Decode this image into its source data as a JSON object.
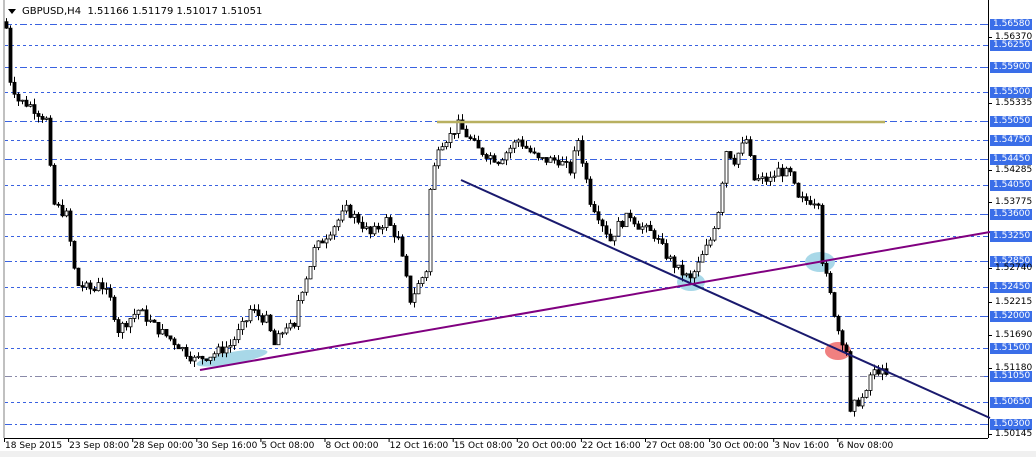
{
  "header": {
    "symbol": "GBPUSD,H4",
    "ohlc": "1.51166 1.51179 1.51017 1.51051"
  },
  "chart_data": {
    "type": "candlestick",
    "title": "GBPUSD,H4 1.51166 1.51179 1.51017 1.51051",
    "ylim": [
      1.4995,
      1.568
    ],
    "y_ticks": [
      "1.56370",
      "1.55335",
      "1.54285",
      "1.53775",
      "1.52740",
      "1.52215",
      "1.51690",
      "1.51180",
      "1.50145"
    ],
    "x_ticks": [
      "18 Sep 2015",
      "23 Sep 08:00",
      "28 Sep 00:00",
      "30 Sep 16:00",
      "5 Oct 08:00",
      "8 Oct 00:00",
      "12 Oct 16:00",
      "15 Oct 08:00",
      "20 Oct 00:00",
      "22 Oct 16:00",
      "27 Oct 08:00",
      "30 Oct 00:00",
      "3 Nov 16:00",
      "6 Nov 08:00"
    ],
    "level_lines": [
      "1.56580",
      "1.56250",
      "1.55900",
      "1.55500",
      "1.55050",
      "1.54750",
      "1.54450",
      "1.54050",
      "1.53600",
      "1.53250",
      "1.52850",
      "1.52450",
      "1.52000",
      "1.51500",
      "1.51050",
      "1.50650",
      "1.50300"
    ],
    "current_price": "1.51050",
    "close_path_by_bar": [
      [
        0,
        1.5651
      ],
      [
        1,
        1.557
      ],
      [
        3,
        1.5538
      ],
      [
        6,
        1.553
      ],
      [
        10,
        1.5507
      ],
      [
        11,
        1.5428
      ],
      [
        12,
        1.5374
      ],
      [
        15,
        1.5358
      ],
      [
        17,
        1.5272
      ],
      [
        18,
        1.5248
      ],
      [
        22,
        1.524
      ],
      [
        23,
        1.5256
      ],
      [
        26,
        1.5225
      ],
      [
        28,
        1.5178
      ],
      [
        33,
        1.5209
      ],
      [
        38,
        1.5178
      ],
      [
        43,
        1.5154
      ],
      [
        47,
        1.5131
      ],
      [
        51,
        1.5138
      ],
      [
        56,
        1.5154
      ],
      [
        60,
        1.5193
      ],
      [
        61,
        1.5209
      ],
      [
        65,
        1.5193
      ],
      [
        67,
        1.5154
      ],
      [
        70,
        1.5185
      ],
      [
        72,
        1.5178
      ],
      [
        73,
        1.5225
      ],
      [
        76,
        1.528
      ],
      [
        77,
        1.5303
      ],
      [
        81,
        1.5334
      ],
      [
        85,
        1.5366
      ],
      [
        88,
        1.535
      ],
      [
        91,
        1.5327
      ],
      [
        95,
        1.535
      ],
      [
        98,
        1.5319
      ],
      [
        100,
        1.5256
      ],
      [
        101,
        1.5225
      ],
      [
        105,
        1.5272
      ],
      [
        106,
        1.5397
      ],
      [
        108,
        1.5468
      ],
      [
        111,
        1.5483
      ],
      [
        113,
        1.5499
      ],
      [
        118,
        1.546
      ],
      [
        123,
        1.5444
      ],
      [
        128,
        1.5476
      ],
      [
        133,
        1.5444
      ],
      [
        138,
        1.5444
      ],
      [
        141,
        1.5428
      ],
      [
        143,
        1.5476
      ],
      [
        146,
        1.5381
      ],
      [
        148,
        1.5358
      ],
      [
        151,
        1.5319
      ],
      [
        153,
        1.5342
      ],
      [
        156,
        1.5358
      ],
      [
        158,
        1.5342
      ],
      [
        162,
        1.5327
      ],
      [
        165,
        1.5295
      ],
      [
        168,
        1.5272
      ],
      [
        171,
        1.5256
      ],
      [
        173,
        1.528
      ],
      [
        176,
        1.5319
      ],
      [
        178,
        1.5366
      ],
      [
        180,
        1.546
      ],
      [
        182,
        1.5444
      ],
      [
        185,
        1.5476
      ],
      [
        187,
        1.5413
      ],
      [
        191,
        1.5413
      ],
      [
        193,
        1.5428
      ],
      [
        196,
        1.5421
      ],
      [
        198,
        1.5381
      ],
      [
        201,
        1.5381
      ],
      [
        203,
        1.5381
      ],
      [
        204,
        1.5288
      ],
      [
        206,
        1.5232
      ],
      [
        208,
        1.5178
      ],
      [
        210,
        1.5146
      ],
      [
        211,
        1.5044
      ],
      [
        212,
        1.506
      ],
      [
        215,
        1.5076
      ],
      [
        216,
        1.5107
      ],
      [
        218,
        1.5115
      ],
      [
        220,
        1.5105
      ]
    ],
    "colors": {
      "grid": "#3a62e0",
      "tag": "#3a6ee8",
      "support": "#800080",
      "resistance": "#1a1a6e",
      "top_line": "#b8b060",
      "highlight": "#a8d8e8",
      "break": "#f08080"
    }
  }
}
